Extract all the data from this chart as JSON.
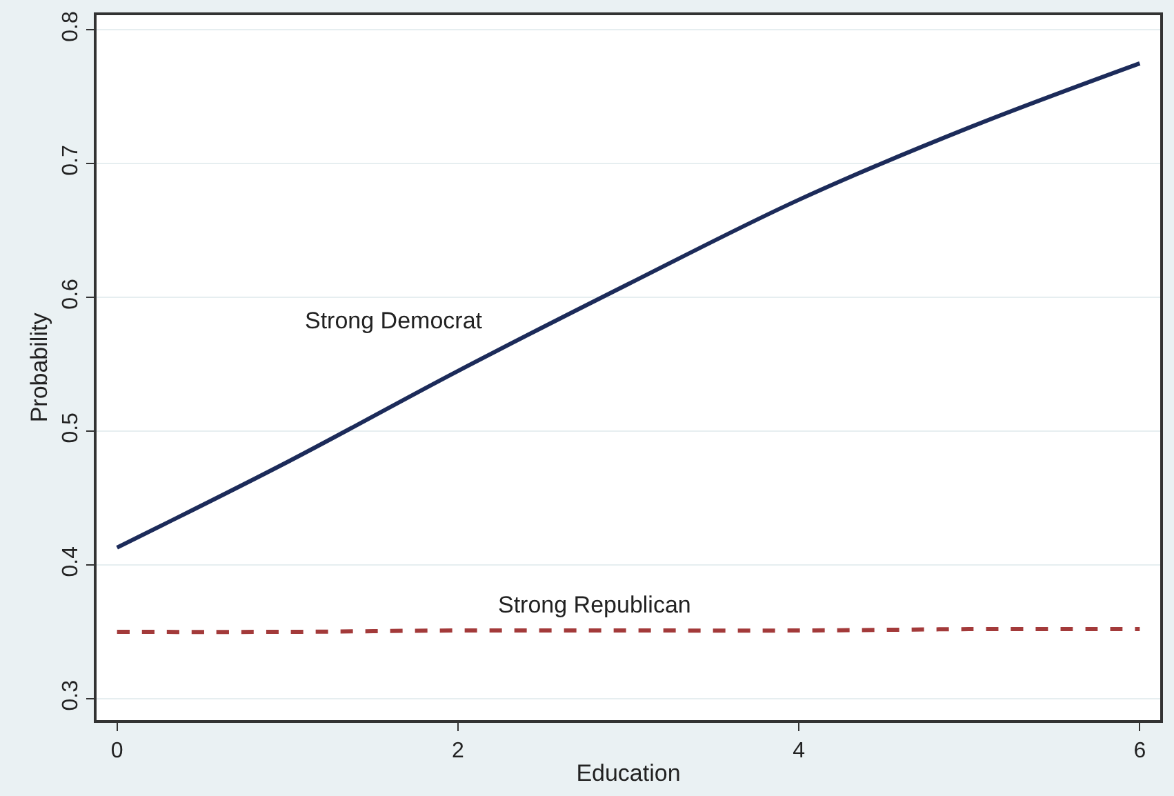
{
  "chart_data": {
    "type": "line",
    "xlabel": "Education",
    "ylabel": "Probability",
    "x": [
      0,
      1,
      2,
      3,
      4,
      5,
      6
    ],
    "series": [
      {
        "name": "Strong Democrat",
        "color": "#1c2b5a",
        "line_style": "solid",
        "values": [
          0.413,
          0.477,
          0.545,
          0.61,
          0.673,
          0.727,
          0.775
        ]
      },
      {
        "name": "Strong Republican",
        "color": "#a33a3a",
        "line_style": "dashed",
        "values": [
          0.35,
          0.35,
          0.351,
          0.351,
          0.351,
          0.352,
          0.352
        ]
      }
    ],
    "xlim": [
      -0.12,
      6.12
    ],
    "ylim": [
      0.284,
      0.811
    ],
    "xticks": [
      0,
      2,
      4,
      6
    ],
    "yticks": [
      0.3,
      0.4,
      0.5,
      0.6,
      0.7,
      0.8
    ],
    "grid": "y",
    "legend": false,
    "marker": "none"
  }
}
